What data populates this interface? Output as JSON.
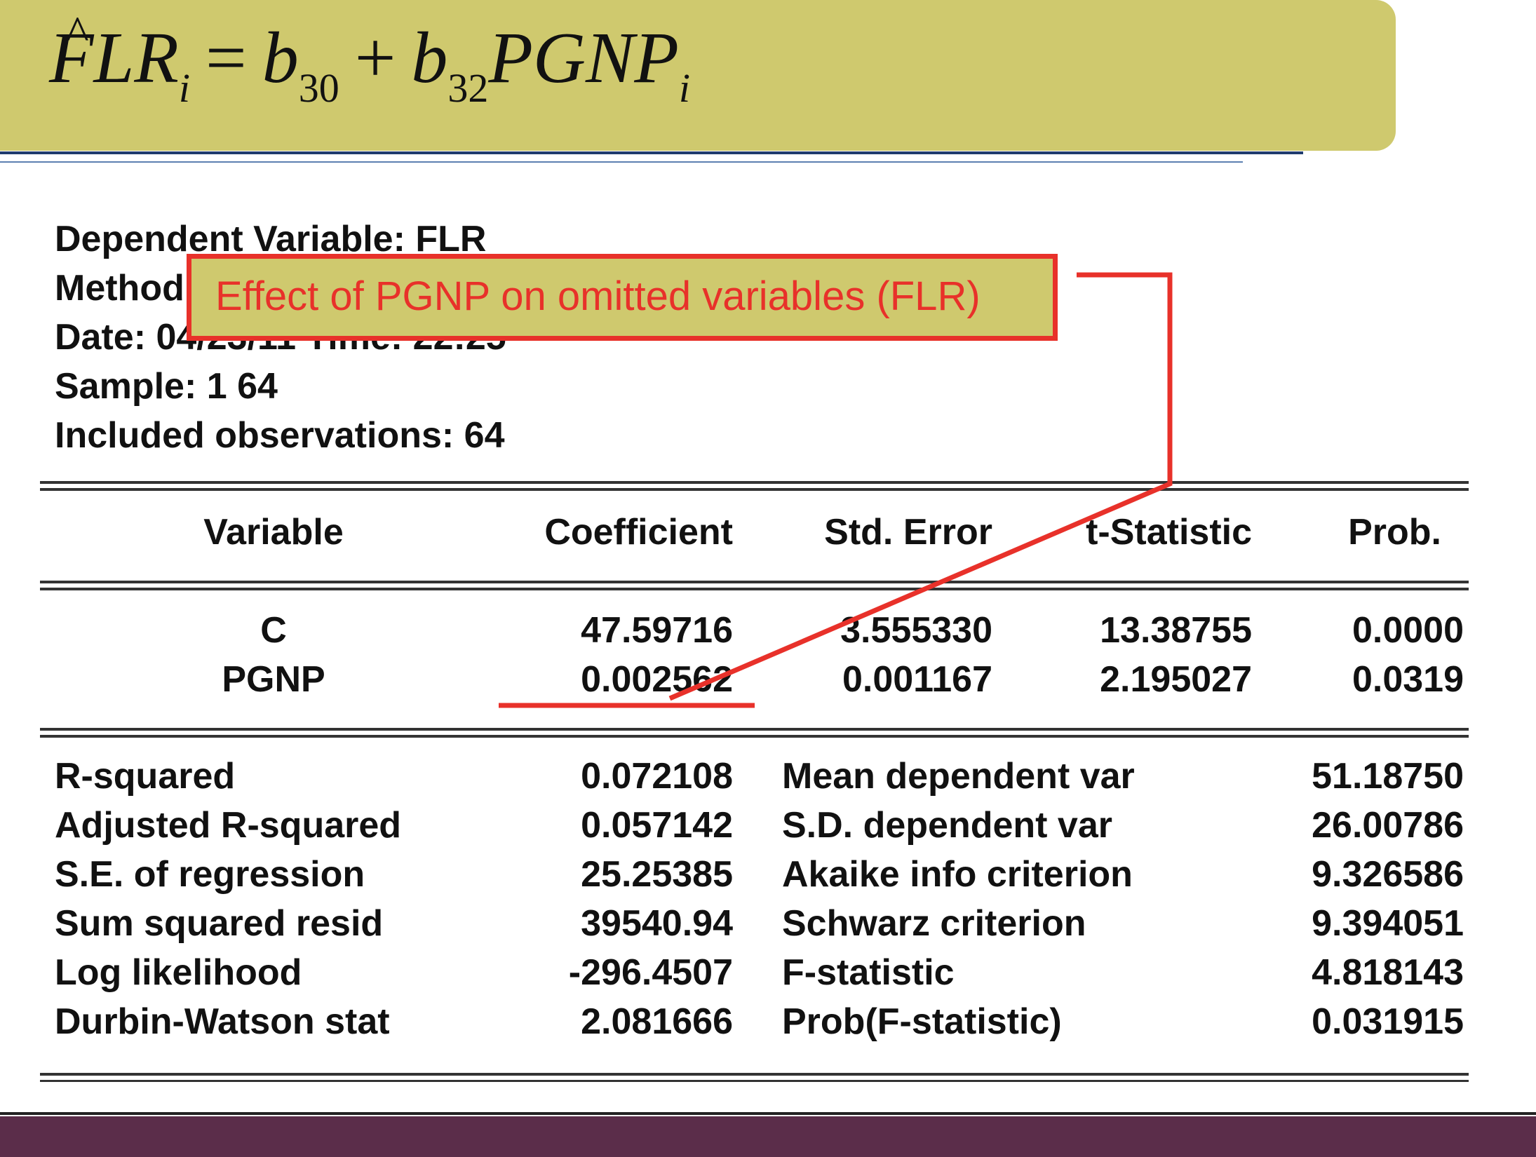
{
  "equation": {
    "lhs": "FLR",
    "lhs_sub": "i",
    "equals": "=",
    "b1": "b",
    "b1_sub": "30",
    "plus": "+",
    "b2": "b",
    "b2_sub": "32",
    "var": "PGNP",
    "var_sub": "i",
    "hat": "^"
  },
  "header": {
    "line1": "Dependent Variable: FLR",
    "line2": "Method: Least Squares",
    "line3": "Date: 04/23/11   Time: 22:25",
    "line4": "Sample: 1 64",
    "line5": "Included observations: 64"
  },
  "table": {
    "columns": [
      "Variable",
      "Coefficient",
      "Std. Error",
      "t-Statistic",
      "Prob."
    ],
    "rows": [
      [
        "C",
        "47.59716",
        "3.555330",
        "13.38755",
        "0.0000"
      ],
      [
        "PGNP",
        "0.002562",
        "0.001167",
        "2.195027",
        "0.0319"
      ]
    ]
  },
  "stats": [
    [
      "R-squared",
      "0.072108",
      "Mean dependent var",
      "51.18750"
    ],
    [
      "Adjusted R-squared",
      "0.057142",
      "S.D. dependent var",
      "26.00786"
    ],
    [
      "S.E. of regression",
      "25.25385",
      "Akaike info criterion",
      "9.326586"
    ],
    [
      "Sum squared resid",
      "39540.94",
      "Schwarz criterion",
      "9.394051"
    ],
    [
      "Log likelihood",
      "-296.4507",
      "F-statistic",
      "4.818143"
    ],
    [
      "Durbin-Watson stat",
      "2.081666",
      "Prob(F-statistic)",
      "0.031915"
    ]
  ],
  "callout": {
    "text": "Effect of PGNP on omitted variables (FLR)",
    "color": "#e8312a",
    "background": "#cfc96e"
  },
  "theme": {
    "banner": "#cfc96e",
    "footer": "#5b2d4a",
    "rule": "#1f3b6e"
  }
}
